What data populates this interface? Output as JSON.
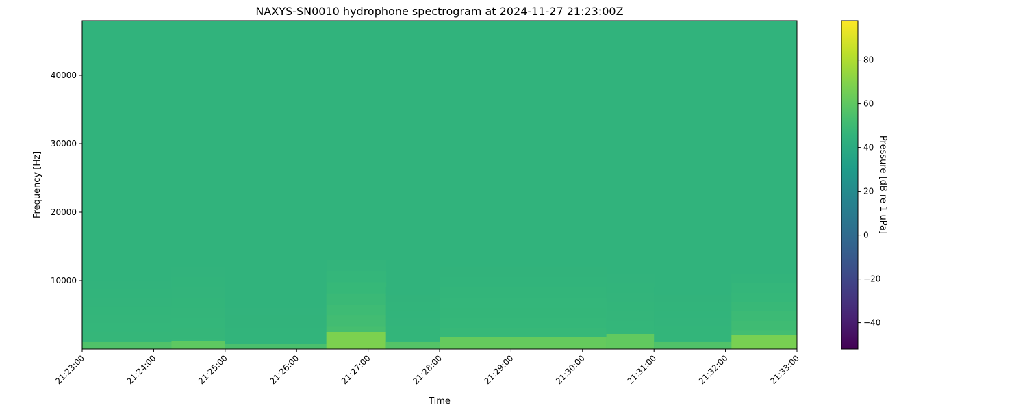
{
  "chart_data": {
    "type": "heatmap",
    "subtype": "spectrogram",
    "title": "NAXYS-SN0010 hydrophone spectrogram at 2024-11-27 21:23:00Z",
    "xlabel": "Time",
    "ylabel": "Frequency [Hz]",
    "colorbar_label": "Pressure [dB re 1 uPa]",
    "colormap": "viridis",
    "xlim": [
      "21:23:00",
      "21:33:00"
    ],
    "ylim": [
      0,
      48000
    ],
    "clim": [
      -52,
      98
    ],
    "x_ticks": [
      "21:23:00",
      "21:24:00",
      "21:25:00",
      "21:26:00",
      "21:27:00",
      "21:28:00",
      "21:29:00",
      "21:30:00",
      "21:31:00",
      "21:32:00",
      "21:33:00"
    ],
    "y_ticks": [
      10000,
      20000,
      30000,
      40000
    ],
    "y_tick_labels": [
      "10000",
      "20000",
      "30000",
      "40000"
    ],
    "colorbar_ticks": [
      -40,
      -20,
      0,
      20,
      40,
      60,
      80
    ],
    "colorbar_tick_labels": [
      "−40",
      "−20",
      "0",
      "20",
      "40",
      "60",
      "80"
    ],
    "grid": false,
    "background_level_db": 45,
    "segments": [
      {
        "start": "21:23:00",
        "end": "21:24:15",
        "low_band_db": 56,
        "low_band_top_hz": 1000,
        "mid_db": 48,
        "mid_top_hz": 10000
      },
      {
        "start": "21:24:15",
        "end": "21:25:00",
        "low_band_db": 60,
        "low_band_top_hz": 1200,
        "mid_db": 48,
        "mid_top_hz": 12000
      },
      {
        "start": "21:25:00",
        "end": "21:26:25",
        "low_band_db": 54,
        "low_band_top_hz": 800,
        "mid_db": 46,
        "mid_top_hz": 8000
      },
      {
        "start": "21:26:25",
        "end": "21:27:15",
        "low_band_db": 68,
        "low_band_top_hz": 2500,
        "mid_db": 54,
        "mid_top_hz": 13000
      },
      {
        "start": "21:27:15",
        "end": "21:28:00",
        "low_band_db": 57,
        "low_band_top_hz": 1000,
        "mid_db": 47,
        "mid_top_hz": 9000
      },
      {
        "start": "21:28:00",
        "end": "21:30:20",
        "low_band_db": 62,
        "low_band_top_hz": 1800,
        "mid_db": 49,
        "mid_top_hz": 12000
      },
      {
        "start": "21:30:20",
        "end": "21:31:00",
        "low_band_db": 61,
        "low_band_top_hz": 2200,
        "mid_db": 48,
        "mid_top_hz": 11000
      },
      {
        "start": "21:31:00",
        "end": "21:32:05",
        "low_band_db": 56,
        "low_band_top_hz": 1000,
        "mid_db": 47,
        "mid_top_hz": 9000
      },
      {
        "start": "21:32:05",
        "end": "21:33:00",
        "low_band_db": 67,
        "low_band_top_hz": 2000,
        "mid_db": 53,
        "mid_top_hz": 11000
      }
    ]
  }
}
